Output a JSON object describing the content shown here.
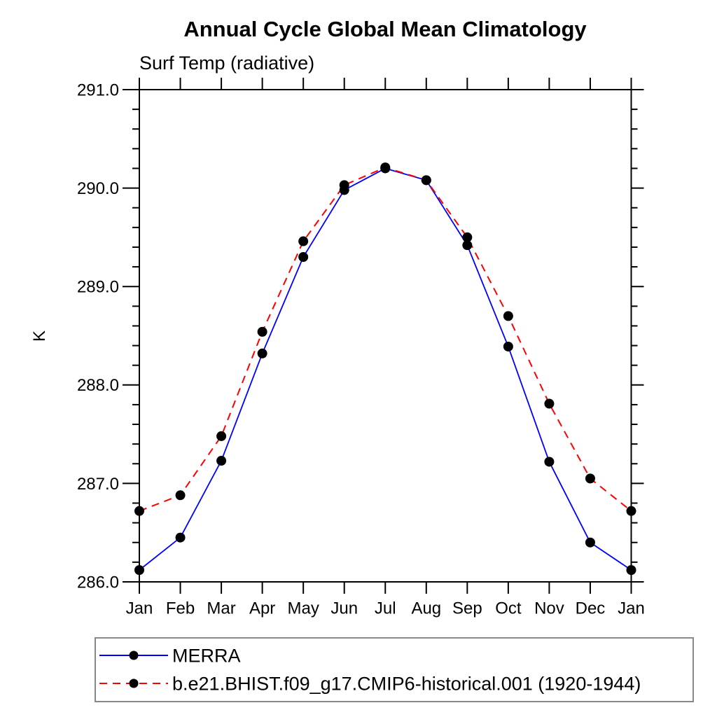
{
  "page": {
    "title": "Annual Cycle Global Mean Climatology",
    "subtitle": "Surf Temp (radiative)"
  },
  "chart_data": {
    "type": "line",
    "title": "Annual Cycle Global Mean Climatology",
    "subtitle": "Surf Temp (radiative)",
    "xlabel": "",
    "ylabel": "K",
    "categories": [
      "Jan",
      "Feb",
      "Mar",
      "Apr",
      "May",
      "Jun",
      "Jul",
      "Aug",
      "Sep",
      "Oct",
      "Nov",
      "Dec",
      "Jan"
    ],
    "ylim": [
      286.0,
      291.0
    ],
    "ytick_major_step": 1.0,
    "ytick_minor_step": 0.2,
    "ytick_labels": [
      "286.0",
      "287.0",
      "288.0",
      "289.0",
      "290.0",
      "291.0"
    ],
    "grid": false,
    "legend_position": "bottom-left",
    "marker": {
      "shape": "circle",
      "color": "#000000",
      "radius": 7
    },
    "axis_color": "#000000",
    "legend_border_color": "#888888",
    "series": [
      {
        "name": "MERRA",
        "color": "#0000ff",
        "line_style": "solid",
        "values": [
          286.12,
          286.45,
          287.23,
          288.32,
          289.3,
          289.98,
          290.2,
          290.08,
          289.42,
          288.39,
          287.22,
          286.4,
          286.12
        ]
      },
      {
        "name": "b.e21.BHIST.f09_g17.CMIP6-historical.001 (1920-1944)",
        "color": "#ff0000",
        "line_style": "dashed",
        "values": [
          286.72,
          286.88,
          287.48,
          288.54,
          289.46,
          290.03,
          290.21,
          290.08,
          289.5,
          288.7,
          287.81,
          287.05,
          286.72
        ]
      }
    ]
  }
}
